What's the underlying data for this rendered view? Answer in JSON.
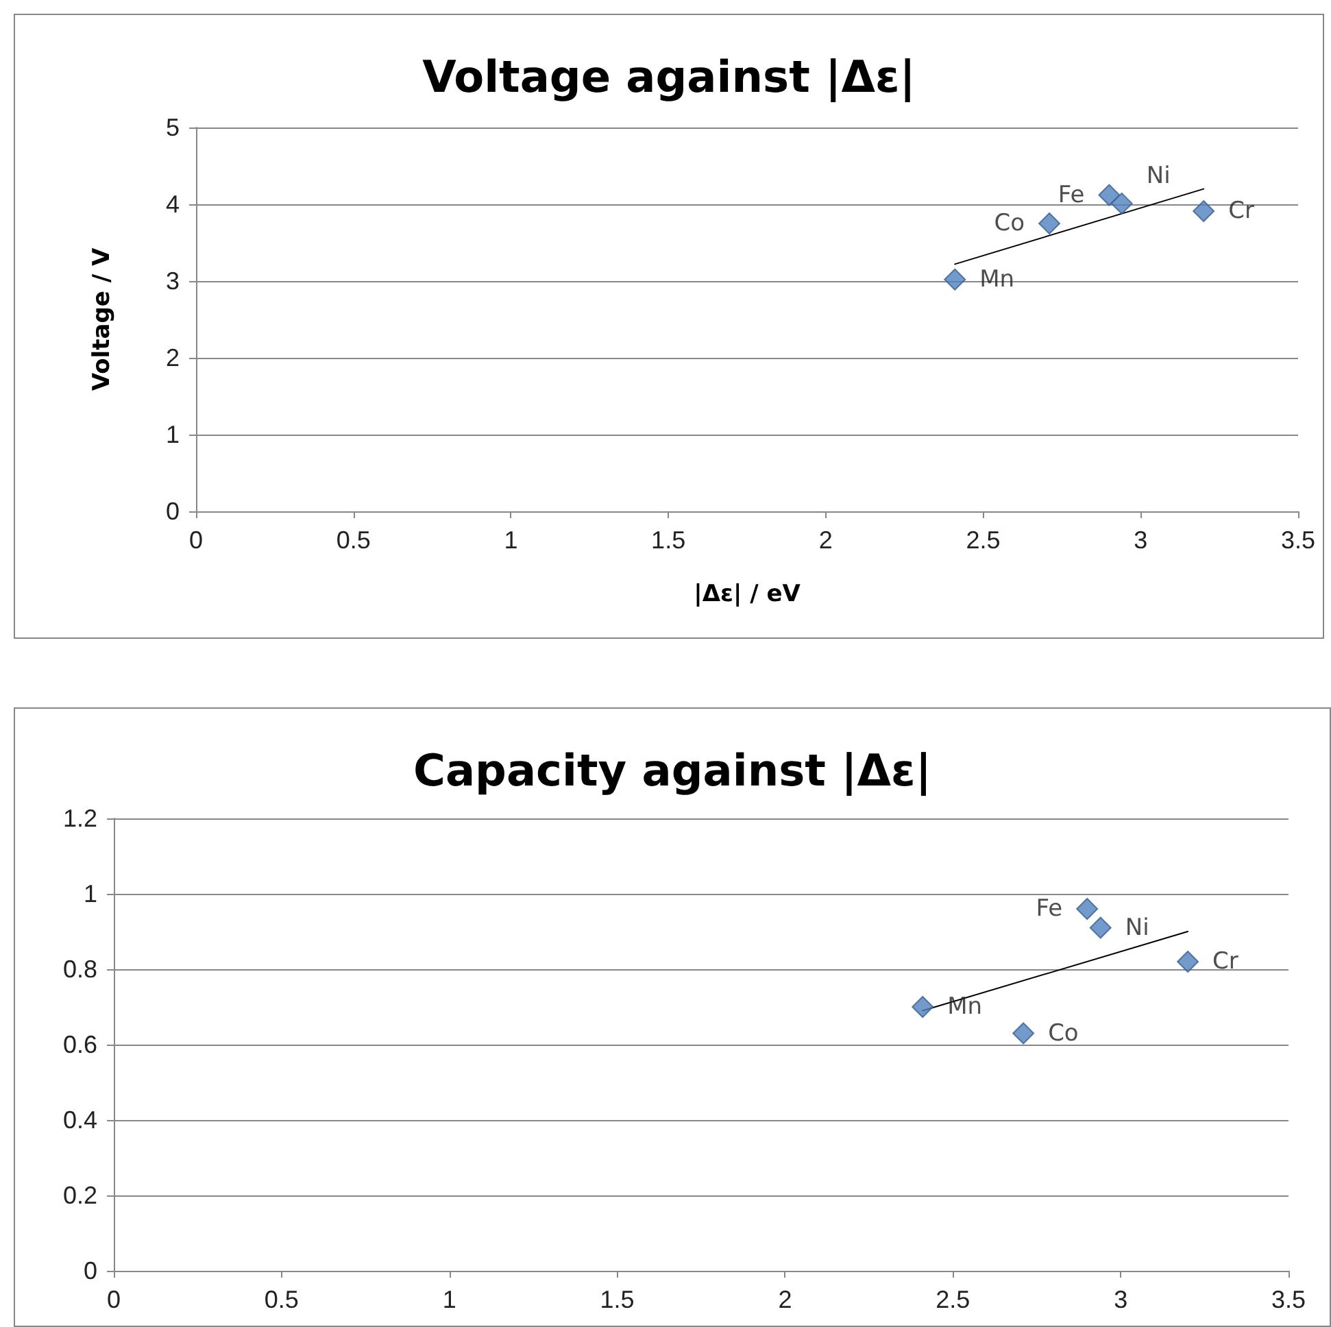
{
  "chart_data": [
    {
      "type": "scatter",
      "title": "Voltage against |Δε|",
      "xlabel": "|Δε| / eV",
      "ylabel": "Voltage / V",
      "series": [
        {
          "type": "scatter",
          "color": "#4f81bd",
          "marker": "diamond",
          "x": [
            2.41,
            2.71,
            2.9,
            2.94,
            3.2
          ],
          "values": [
            3.02,
            3.75,
            4.12,
            4.01,
            3.91
          ]
        },
        {
          "type": "line",
          "color": "#000000",
          "marker": "none",
          "x": [
            2.41,
            3.2
          ],
          "values": [
            3.22,
            4.2
          ]
        }
      ],
      "xlim": [
        0,
        3.5
      ],
      "xticks": [
        0,
        0.5,
        1,
        1.5,
        2,
        2.5,
        3,
        3.5
      ],
      "ylim": [
        0,
        5
      ],
      "yticks": [
        0,
        1,
        2,
        3,
        4,
        5
      ],
      "grid": "y",
      "annotations": [
        {
          "text": "Mn",
          "x": 2.41,
          "y": 3.02
        },
        {
          "text": "Co",
          "x": 2.71,
          "y": 3.75
        },
        {
          "text": "Fe",
          "x": 2.9,
          "y": 4.12
        },
        {
          "text": "Ni",
          "x": 2.94,
          "y": 4.01
        },
        {
          "text": "Cr",
          "x": 3.2,
          "y": 3.91
        }
      ]
    },
    {
      "type": "scatter",
      "title": "Capacity against |Δε|",
      "series": [
        {
          "type": "scatter",
          "color": "#4f81bd",
          "marker": "diamond",
          "x": [
            2.41,
            2.71,
            2.9,
            2.94,
            3.2
          ],
          "values": [
            0.7,
            0.63,
            0.96,
            0.91,
            0.82
          ]
        },
        {
          "type": "line",
          "color": "#000000",
          "marker": "none",
          "x": [
            2.41,
            3.2
          ],
          "values": [
            0.69,
            0.9
          ]
        }
      ],
      "xlim": [
        0,
        3.5
      ],
      "xticks": [
        0,
        0.5,
        1,
        1.5,
        2,
        2.5,
        3,
        3.5
      ],
      "ylim": [
        0,
        1.2
      ],
      "yticks": [
        0,
        0.2,
        0.4,
        0.6,
        0.8,
        1,
        1.2
      ],
      "grid": "y",
      "annotations": [
        {
          "text": "Mn",
          "x": 2.41,
          "y": 0.7
        },
        {
          "text": "Co",
          "x": 2.71,
          "y": 0.63
        },
        {
          "text": "Fe",
          "x": 2.9,
          "y": 0.96
        },
        {
          "text": "Ni",
          "x": 2.94,
          "y": 0.91
        },
        {
          "text": "Cr",
          "x": 3.2,
          "y": 0.82
        }
      ]
    }
  ]
}
